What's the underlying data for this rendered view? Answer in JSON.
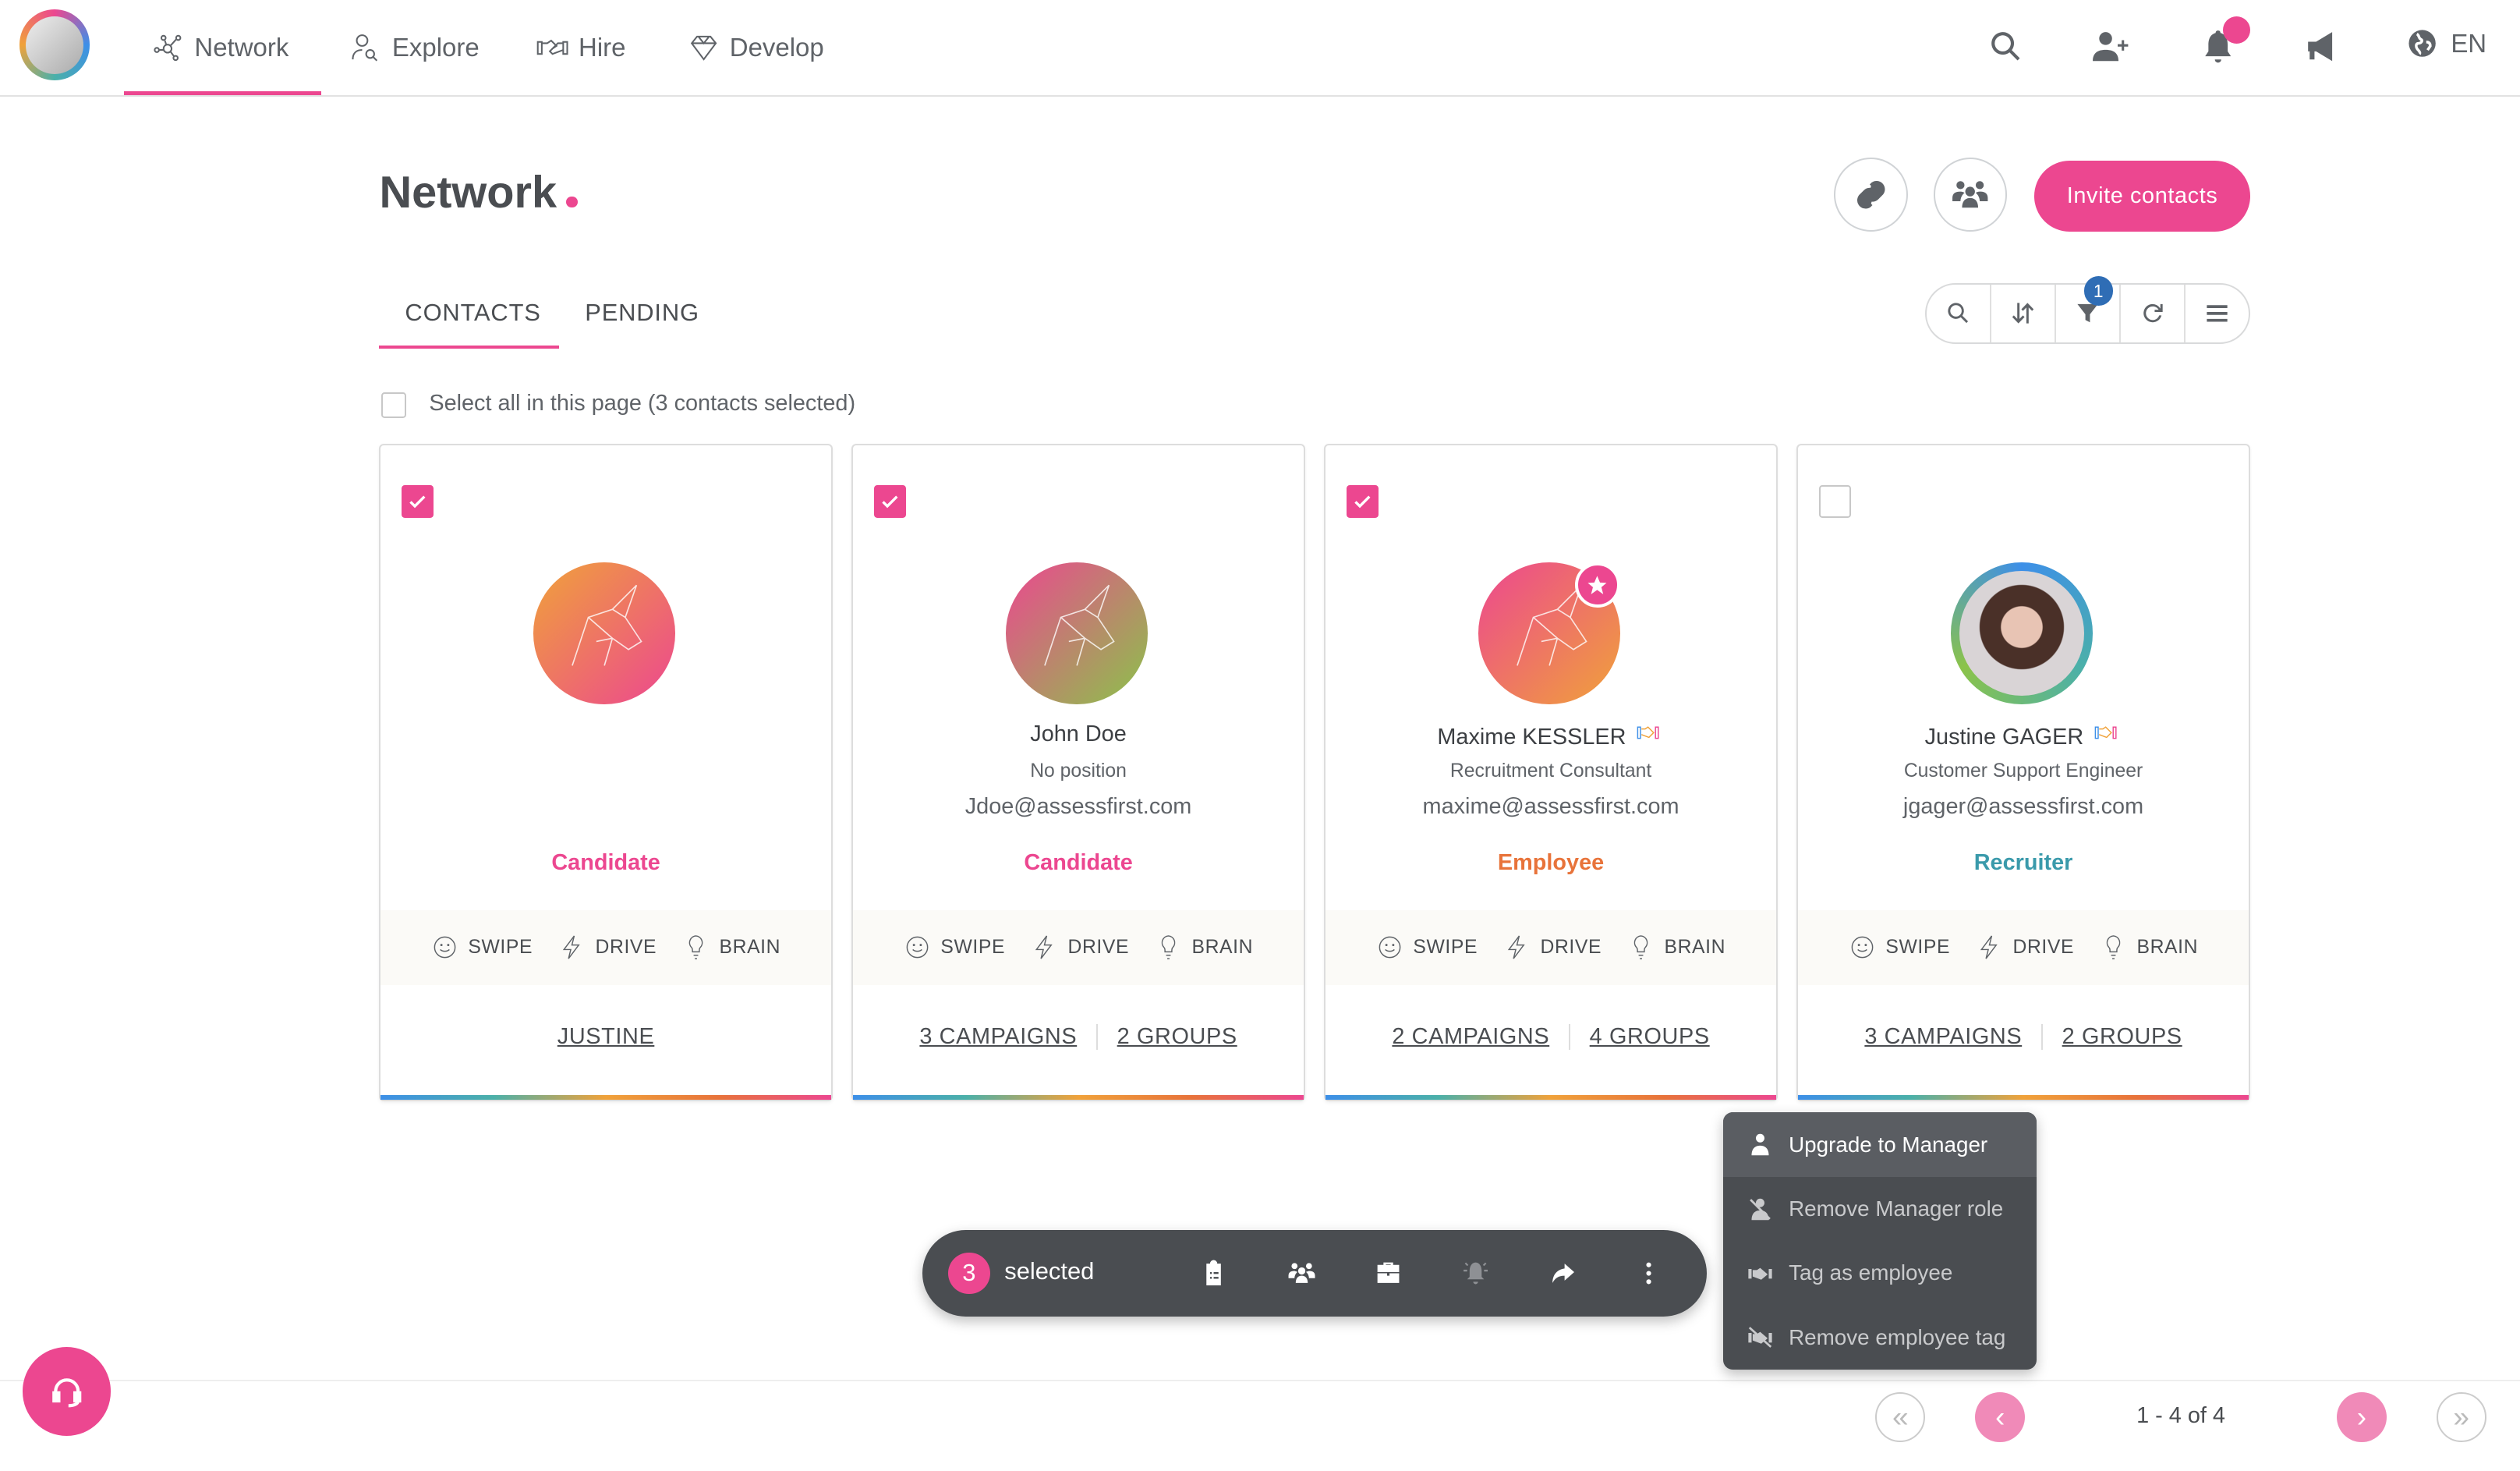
{
  "nav": {
    "items": [
      {
        "label": "Network",
        "icon": "network-icon",
        "active": true
      },
      {
        "label": "Explore",
        "icon": "explore-icon"
      },
      {
        "label": "Hire",
        "icon": "handshake-icon"
      },
      {
        "label": "Develop",
        "icon": "diamond-icon"
      }
    ],
    "language": "EN"
  },
  "page": {
    "title": "Network",
    "invite_label": "Invite contacts",
    "tabs": [
      "CONTACTS",
      "PENDING"
    ],
    "active_tab": "CONTACTS",
    "filter_count": "1",
    "select_all": "Select all in this page (3 contacts selected)"
  },
  "colors": {
    "accent": "#ec4790",
    "candidate": "#ec4790",
    "employee": "#e8733a",
    "recruiter": "#3a9aab",
    "badge": "#2f6db5",
    "dark": "#4a4d51"
  },
  "cards": [
    {
      "checked": true,
      "name": "",
      "position": "",
      "email": "",
      "role": "Candidate",
      "role_color": "#ec4790",
      "tests": [
        "SWIPE",
        "DRIVE",
        "BRAIN"
      ],
      "links": [
        "JUSTINE"
      ]
    },
    {
      "checked": true,
      "name": "John Doe",
      "position": "No position",
      "email": "Jdoe@assessfirst.com",
      "role": "Candidate",
      "role_color": "#ec4790",
      "tests": [
        "SWIPE",
        "DRIVE",
        "BRAIN"
      ],
      "links": [
        "3 CAMPAIGNS",
        "2 GROUPS"
      ]
    },
    {
      "checked": true,
      "name": "Maxime KESSLER",
      "position": "Recruitment Consultant",
      "email": "maxime@assessfirst.com",
      "role": "Employee",
      "role_color": "#e8733a",
      "tests": [
        "SWIPE",
        "DRIVE",
        "BRAIN"
      ],
      "links": [
        "2 CAMPAIGNS",
        "4 GROUPS"
      ]
    },
    {
      "checked": false,
      "name": "Justine GAGER",
      "position": "Customer Support Engineer",
      "email": "jgager@assessfirst.com",
      "role": "Recruiter",
      "role_color": "#3a9aab",
      "tests": [
        "SWIPE",
        "DRIVE",
        "BRAIN"
      ],
      "links": [
        "3 CAMPAIGNS",
        "2 GROUPS"
      ]
    }
  ],
  "menu": [
    "Upgrade to Manager",
    "Remove Manager role",
    "Tag as employee",
    "Remove employee tag"
  ],
  "selection": {
    "count": "3",
    "label": "selected"
  },
  "pagination": {
    "text": "1 - 4 of 4"
  }
}
